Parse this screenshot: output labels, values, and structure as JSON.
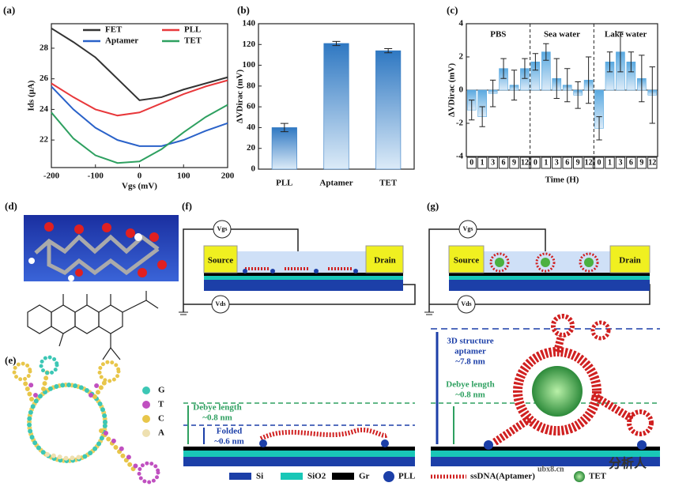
{
  "panel_labels": [
    "(a)",
    "(b)",
    "(c)",
    "(d)",
    "(e)",
    "(f)",
    "(g)"
  ],
  "chart_data": [
    {
      "type": "line",
      "xlabel": "Vgs (mV)",
      "ylabel": "Ids (μA)",
      "x": [
        -200,
        -150,
        -100,
        -50,
        0,
        50,
        100,
        150,
        200
      ],
      "xlim": [
        -200,
        200
      ],
      "xticks": [
        -200,
        -100,
        0,
        100,
        200
      ],
      "ylim": [
        20.2,
        29.6
      ],
      "yticks": [
        22,
        24,
        26,
        28
      ],
      "legend": "upper center",
      "series": [
        {
          "name": "FET",
          "color": "#333333",
          "values": [
            29.3,
            28.4,
            27.4,
            26.0,
            24.6,
            24.8,
            25.3,
            25.7,
            26.1
          ]
        },
        {
          "name": "PLL",
          "color": "#e8383b",
          "values": [
            25.7,
            24.8,
            24.0,
            23.6,
            23.8,
            24.4,
            25.0,
            25.5,
            25.9
          ]
        },
        {
          "name": "Aptamer",
          "color": "#2a62c9",
          "values": [
            25.5,
            24.0,
            22.8,
            22.0,
            21.6,
            21.6,
            22.0,
            22.6,
            23.1
          ]
        },
        {
          "name": "TET",
          "color": "#2ea060",
          "values": [
            23.8,
            22.1,
            21.0,
            20.5,
            20.6,
            21.4,
            22.5,
            23.5,
            24.3
          ]
        }
      ]
    },
    {
      "type": "bar",
      "ylabel": "ΔVDirac (mV)",
      "categories": [
        "PLL",
        "Aptamer",
        "TET"
      ],
      "values": [
        40,
        121,
        114
      ],
      "errors": [
        4,
        2,
        2
      ],
      "color": "#2f78c2",
      "ylim": [
        0,
        140
      ],
      "yticks": [
        0,
        20,
        40,
        60,
        80,
        100,
        120,
        140
      ]
    },
    {
      "type": "bar",
      "xlabel": "Time (H)",
      "ylabel": "ΔVDirac (mV)",
      "groups": [
        "PBS",
        "Sea water",
        "Lake water"
      ],
      "categories": [
        "0",
        "1",
        "3",
        "6",
        "9",
        "12",
        "0",
        "1",
        "3",
        "6",
        "9",
        "12",
        "0",
        "1",
        "3",
        "6",
        "9",
        "12"
      ],
      "values": [
        -1.2,
        -1.6,
        -0.2,
        1.3,
        0.3,
        1.3,
        1.7,
        2.3,
        0.7,
        0.3,
        -0.3,
        0.6,
        -2.3,
        1.7,
        2.3,
        1.7,
        0.7,
        -0.3
      ],
      "errors": [
        0.6,
        0.6,
        0.8,
        0.6,
        0.9,
        0.6,
        0.5,
        0.5,
        1.2,
        1.0,
        0.8,
        1.4,
        0.7,
        0.6,
        1.2,
        0.6,
        1.4,
        1.7
      ],
      "color": "#5aa9e0",
      "ylim": [
        -4,
        4
      ],
      "yticks": [
        4,
        2,
        0,
        -2,
        -4
      ]
    }
  ],
  "diagram_f": {
    "source": "Source",
    "drain": "Drain",
    "vgs": "Vgs",
    "vds": "Vds"
  },
  "diagram_g": {
    "source": "Source",
    "drain": "Drain",
    "vgs": "Vgs",
    "vds": "Vds"
  },
  "zoom_f": {
    "debye": [
      "Debye length",
      "~0.8 nm"
    ],
    "folded": [
      "Folded",
      "~0.6 nm"
    ]
  },
  "zoom_g": {
    "structure": [
      "3D structure",
      "aptamer",
      "~7.8 nm"
    ],
    "debye": [
      "Debye length",
      "~0.8 nm"
    ]
  },
  "base_legend": [
    "Si",
    "SiO2",
    "Gr",
    "PLL",
    "ssDNA(Aptamer)",
    "TET"
  ],
  "nucleotide_legend": [
    "G",
    "T",
    "C",
    "A"
  ],
  "watermark": [
    "ubx8.cn",
    "分析人"
  ]
}
